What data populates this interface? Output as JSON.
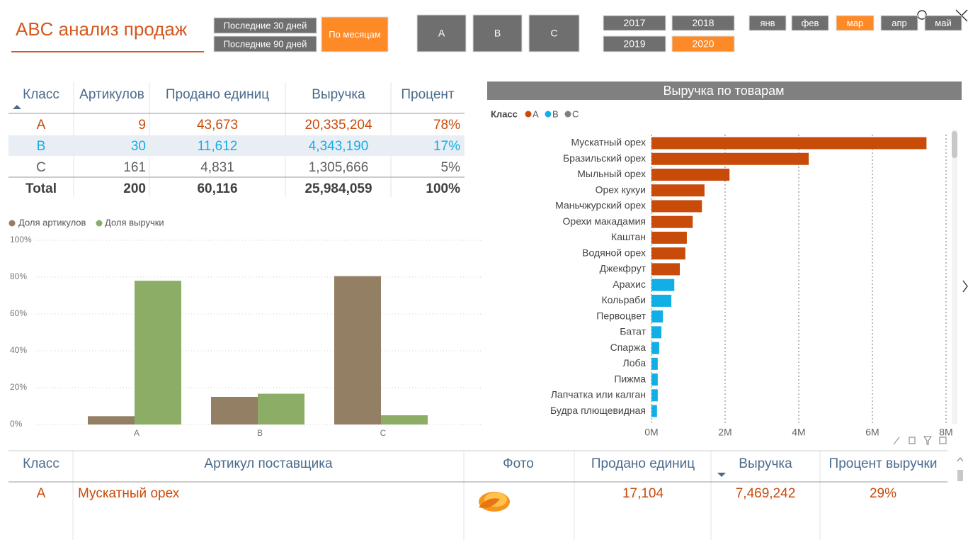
{
  "header": {
    "title": "ABC анализ продаж"
  },
  "filters": {
    "periods": [
      {
        "label": "Последние 30 дней",
        "selected": false
      },
      {
        "label": "Последние 90 дней",
        "selected": false
      },
      {
        "label": "По месяцам",
        "selected": true
      }
    ],
    "classes": [
      {
        "label": "A",
        "selected": false
      },
      {
        "label": "B",
        "selected": false
      },
      {
        "label": "C",
        "selected": false
      }
    ],
    "years": [
      {
        "label": "2017",
        "selected": false
      },
      {
        "label": "2018",
        "selected": false
      },
      {
        "label": "2019",
        "selected": false
      },
      {
        "label": "2020",
        "selected": true
      }
    ],
    "months": [
      {
        "label": "янв",
        "selected": false
      },
      {
        "label": "фев",
        "selected": false
      },
      {
        "label": "мар",
        "selected": true
      },
      {
        "label": "апр",
        "selected": false
      },
      {
        "label": "май",
        "selected": false
      }
    ]
  },
  "summary_table": {
    "columns": [
      "Класс",
      "Артикулов",
      "Продано единиц",
      "Выручка",
      "Процент"
    ],
    "rows": [
      [
        "A",
        "9",
        "43,673",
        "20,335,204",
        "78%"
      ],
      [
        "B",
        "30",
        "11,612",
        "4,343,190",
        "17%"
      ],
      [
        "C",
        "161",
        "4,831",
        "1,305,666",
        "5%"
      ],
      [
        "Total",
        "200",
        "60,116",
        "25,984,059",
        "100%"
      ]
    ]
  },
  "chart_data": [
    {
      "type": "bar",
      "orientation": "vertical",
      "categories": [
        "A",
        "B",
        "C"
      ],
      "series": [
        {
          "name": "Доля артикулов",
          "color": "#937f63",
          "values": [
            4.5,
            15,
            80.5
          ]
        },
        {
          "name": "Доля выручки",
          "color": "#8bad66",
          "values": [
            78,
            16.7,
            5
          ]
        }
      ],
      "ylim": [
        0,
        100
      ],
      "yticks": [
        {
          "value": 0,
          "label": "0%"
        },
        {
          "value": 20,
          "label": "20%"
        },
        {
          "value": 40,
          "label": "40%"
        },
        {
          "value": 60,
          "label": "60%"
        },
        {
          "value": 80,
          "label": "80%"
        },
        {
          "value": 100,
          "label": "100%"
        }
      ],
      "grid": true
    },
    {
      "type": "bar",
      "orientation": "horizontal",
      "title": "Выручка по товарам",
      "legend_title": "Класс",
      "categories": [
        "Мускатный орех",
        "Бразильский орех",
        "Мыльный орех",
        "Орех кукуи",
        "Маньчжурский орех",
        "Орехи макадамия",
        "Каштан",
        "Водяной орех",
        "Джекфрут",
        "Арахис",
        "Кольраби",
        "Первоцвет",
        "Батат",
        "Спаржа",
        "Лоба",
        "Пижма",
        "Лапчатка или калган",
        "Будра плющевидная"
      ],
      "series": [
        {
          "name": "A",
          "color": "#c84b0a",
          "values": [
            7469242,
            4270000,
            2120000,
            1440000,
            1370000,
            1120000,
            960000,
            920000,
            770000,
            null,
            null,
            null,
            null,
            null,
            null,
            null,
            null,
            null
          ]
        },
        {
          "name": "B",
          "color": "#12aee6",
          "values": [
            null,
            null,
            null,
            null,
            null,
            null,
            null,
            null,
            null,
            620000,
            540000,
            310000,
            270000,
            210000,
            170000,
            170000,
            170000,
            150000
          ]
        },
        {
          "name": "C",
          "color": "#808080",
          "values": [
            null,
            null,
            null,
            null,
            null,
            null,
            null,
            null,
            null,
            null,
            null,
            null,
            null,
            null,
            null,
            null,
            null,
            null
          ]
        }
      ],
      "xlim": [
        0,
        8000000
      ],
      "xticks": [
        {
          "value": 0,
          "label": "0M"
        },
        {
          "value": 2000000,
          "label": "2M"
        },
        {
          "value": 4000000,
          "label": "4M"
        },
        {
          "value": 6000000,
          "label": "6M"
        },
        {
          "value": 8000000,
          "label": "8M"
        }
      ],
      "grid": true
    }
  ],
  "detail_table": {
    "columns": [
      "Класс",
      "Артикул поставщика",
      "Фото",
      "Продано единиц",
      "Выручка",
      "Процент выручки"
    ],
    "rows": [
      {
        "class": "A",
        "article": "Мускатный орех",
        "sold": "17,104",
        "revenue": "7,469,242",
        "percent": "29%"
      }
    ]
  }
}
